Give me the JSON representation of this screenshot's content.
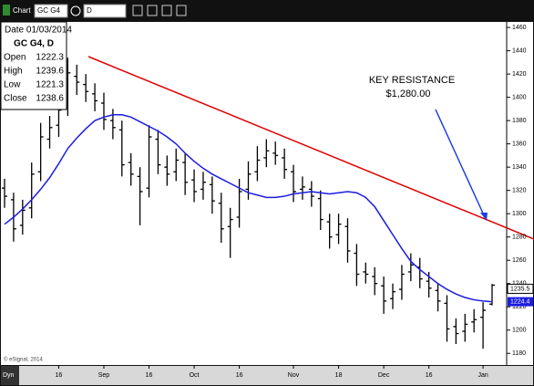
{
  "chart_data": {
    "type": "ohlc",
    "toolbar": {
      "window_title": "Chart",
      "symbol": "GC G4",
      "interval": "D"
    },
    "data_window": {
      "date": "Date 01/03/2014",
      "symbol": "GC G4, D",
      "rows": [
        {
          "label": "Open",
          "value": 1222.3
        },
        {
          "label": "High",
          "value": 1239.6
        },
        {
          "label": "Low",
          "value": 1221.3
        },
        {
          "label": "Close",
          "value": 1238.6
        }
      ]
    },
    "annotation": [
      "KEY RESISTANCE",
      "$1,280.00"
    ],
    "copyright": "© eSignal, 2014",
    "corner_label": "Dyn",
    "last_price": 1235.5,
    "categories": [
      null,
      null,
      null,
      null,
      null,
      null,
      "16",
      null,
      null,
      null,
      null,
      "Sep",
      null,
      null,
      null,
      null,
      "16",
      null,
      null,
      null,
      null,
      "Oct",
      null,
      null,
      null,
      null,
      "16",
      null,
      null,
      null,
      null,
      null,
      "Nov",
      null,
      null,
      null,
      null,
      "18",
      null,
      null,
      null,
      null,
      "Dec",
      null,
      null,
      null,
      null,
      "16",
      null,
      null,
      null,
      null,
      null,
      "Jan",
      null
    ],
    "open": [
      1322,
      1312,
      1290,
      1305,
      1336,
      1364,
      1376,
      1392,
      1418,
      1411,
      1403,
      1395,
      1380,
      1372,
      1344,
      1332,
      1322,
      1364,
      1340,
      1336,
      1344,
      1329,
      1321,
      1325,
      1309,
      1289,
      1297,
      1321,
      1336,
      1348,
      1352,
      1348,
      1336,
      1321,
      1321,
      1313,
      1293,
      1282,
      1289,
      1266,
      1250,
      1246,
      1238,
      1227,
      1235,
      1250,
      1254,
      1242,
      1234,
      1223,
      1203,
      1199,
      1207,
      1211,
      1222.3
    ],
    "high": [
      1330,
      1318,
      1312,
      1344,
      1378,
      1384,
      1400,
      1434,
      1428,
      1420,
      1412,
      1404,
      1390,
      1380,
      1352,
      1340,
      1376,
      1372,
      1350,
      1356,
      1352,
      1338,
      1336,
      1332,
      1318,
      1305,
      1330,
      1345,
      1358,
      1364,
      1362,
      1356,
      1342,
      1332,
      1328,
      1320,
      1300,
      1300,
      1296,
      1274,
      1258,
      1254,
      1246,
      1240,
      1256,
      1266,
      1262,
      1250,
      1240,
      1230,
      1210,
      1214,
      1218,
      1224,
      1239.6
    ],
    "low": [
      1305,
      1276,
      1282,
      1296,
      1328,
      1356,
      1366,
      1384,
      1402,
      1396,
      1388,
      1372,
      1364,
      1332,
      1324,
      1290,
      1314,
      1334,
      1324,
      1328,
      1316,
      1310,
      1312,
      1300,
      1275,
      1262,
      1288,
      1312,
      1328,
      1340,
      1342,
      1330,
      1310,
      1312,
      1306,
      1286,
      1270,
      1274,
      1258,
      1238,
      1240,
      1230,
      1214,
      1218,
      1226,
      1242,
      1236,
      1228,
      1216,
      1190,
      1188,
      1190,
      1198,
      1184,
      1221.3
    ],
    "close": [
      1315,
      1287,
      1303,
      1334,
      1366,
      1374,
      1389,
      1421,
      1413,
      1405,
      1397,
      1381,
      1374,
      1342,
      1334,
      1319,
      1366,
      1342,
      1334,
      1346,
      1327,
      1319,
      1327,
      1311,
      1287,
      1295,
      1319,
      1334,
      1346,
      1354,
      1350,
      1338,
      1319,
      1323,
      1315,
      1295,
      1280,
      1291,
      1268,
      1248,
      1248,
      1240,
      1225,
      1233,
      1248,
      1256,
      1244,
      1236,
      1225,
      1201,
      1197,
      1205,
      1209,
      1217,
      1238.6
    ],
    "color": "#000000",
    "moving_average": {
      "color": "#1c1ce0",
      "values": [
        1291,
        1297,
        1304,
        1312,
        1321,
        1331,
        1343,
        1356,
        1365,
        1373,
        1380,
        1383,
        1385,
        1385,
        1383,
        1379,
        1375,
        1371,
        1366,
        1360,
        1352,
        1345,
        1339,
        1334,
        1330,
        1326,
        1322,
        1318,
        1316,
        1314,
        1314,
        1315,
        1317,
        1318,
        1319,
        1318,
        1317,
        1318,
        1319,
        1318,
        1314,
        1306,
        1294,
        1282,
        1270,
        1259,
        1252,
        1246,
        1240,
        1235,
        1231,
        1228,
        1226,
        1225,
        1224.4
      ]
    },
    "ylim": [
      1170,
      1464
    ],
    "yticks": [
      1180,
      1200,
      1220,
      1240,
      1260,
      1280,
      1300,
      1320,
      1340,
      1360,
      1380,
      1400,
      1420,
      1440,
      1460
    ]
  }
}
